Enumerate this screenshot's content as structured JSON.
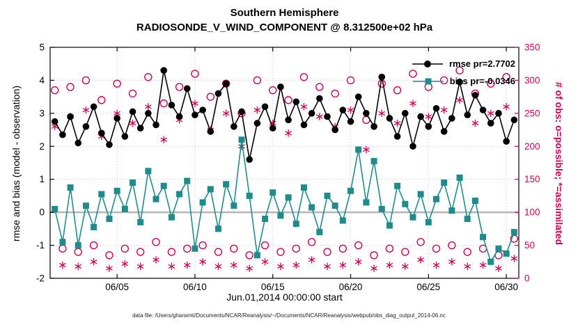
{
  "title": {
    "line1": "Southern Hemisphere",
    "line2": "RADIOSONDE_V_WIND_COMPONENT @ 8.312500e+02 hPa"
  },
  "axes": {
    "left_label": "rmse and bias (model - observation)",
    "right_label": "# of obs: o=possible; *=assimilated",
    "x_label": "Jun.01,2014 00:00:00 start",
    "left_ticks": [
      -2,
      -1,
      0,
      1,
      2,
      3,
      4,
      5
    ],
    "right_ticks": [
      0,
      50,
      100,
      150,
      200,
      250,
      300,
      350
    ],
    "x_ticks": [
      {
        "v": 5,
        "label": "06/05"
      },
      {
        "v": 10,
        "label": "06/10"
      },
      {
        "v": 15,
        "label": "06/15"
      },
      {
        "v": 20,
        "label": "06/20"
      },
      {
        "v": 25,
        "label": "06/25"
      },
      {
        "v": 30,
        "label": "06/30"
      }
    ],
    "left_range": [
      -2,
      5
    ],
    "right_range": [
      0,
      350
    ],
    "x_range": [
      0.7,
      30.8
    ]
  },
  "legend": {
    "rmse_label": "rmse pr=2.7702",
    "bias_label": "bias pr=-0.0346"
  },
  "colors": {
    "rmse": "#000000",
    "bias": "#1f8b8b",
    "obs": "#cc0052",
    "zero_line": "#b5b5b5",
    "grid": "#c9c9c9"
  },
  "caption": "data file: /Users/gharamti/Documents/NCAR/Reanalysis/~/Documents/NCAR/Reanalysis/webpub/obs_diag_output_2014-06.nc",
  "chart_data": {
    "type": "line",
    "title": "Southern Hemisphere RADIOSONDE_V_WIND_COMPONENT @ 8.312500e+02 hPa",
    "xlabel": "Jun.01,2014 00:00:00 start",
    "ylabel_left": "rmse and bias (model - observation)",
    "ylabel_right": "# of obs: o=possible; *=assimilated",
    "ylim_left": [
      -2,
      5
    ],
    "ylim_right": [
      0,
      350
    ],
    "grid": true,
    "legend_position": "top-right",
    "x": [
      1,
      1.5,
      2,
      2.5,
      3,
      3.5,
      4,
      4.5,
      5,
      5.5,
      6,
      6.5,
      7,
      7.5,
      8,
      8.5,
      9,
      9.5,
      10,
      10.5,
      11,
      11.5,
      12,
      12.5,
      13,
      13.5,
      14,
      14.5,
      15,
      15.5,
      16,
      16.5,
      17,
      17.5,
      18,
      18.5,
      19,
      19.5,
      20,
      20.5,
      21,
      21.5,
      22,
      22.5,
      23,
      23.5,
      24,
      24.5,
      25,
      25.5,
      26,
      26.5,
      27,
      27.5,
      28,
      28.5,
      29,
      29.5,
      30,
      30.5
    ],
    "series": [
      {
        "name": "rmse",
        "axis": "left",
        "marker": "filled-circle",
        "line": true,
        "values": [
          2.75,
          2.35,
          2.9,
          2.1,
          2.6,
          3.2,
          2.4,
          2.05,
          2.85,
          2.3,
          3.05,
          2.55,
          3.0,
          2.65,
          4.3,
          3.25,
          2.9,
          3.75,
          2.95,
          3.1,
          2.45,
          3.6,
          3.9,
          2.6,
          3.05,
          1.6,
          2.7,
          3.2,
          2.55,
          3.8,
          2.8,
          3.35,
          2.65,
          3.0,
          3.45,
          2.9,
          2.5,
          3.1,
          2.75,
          3.5,
          3.0,
          2.6,
          4.1,
          2.85,
          2.3,
          3.0,
          2.0,
          2.9,
          2.6,
          3.15,
          2.45,
          2.85,
          3.95,
          2.95,
          3.55,
          3.1,
          2.7,
          3.0,
          2.15,
          2.8
        ]
      },
      {
        "name": "bias",
        "axis": "left",
        "marker": "filled-square",
        "line": true,
        "values": [
          0.1,
          -0.9,
          0.75,
          -1.0,
          0.2,
          -0.45,
          0.55,
          -0.2,
          0.65,
          0.1,
          0.9,
          -0.3,
          1.25,
          0.4,
          0.8,
          -0.15,
          0.55,
          0.95,
          -1.1,
          0.3,
          0.7,
          -0.5,
          0.85,
          0.2,
          2.2,
          0.5,
          -1.3,
          -0.2,
          0.6,
          -0.1,
          0.45,
          -0.35,
          0.75,
          0.15,
          -0.6,
          0.5,
          0.2,
          -0.25,
          0.65,
          1.9,
          0.3,
          1.55,
          0.1,
          -0.4,
          0.8,
          0.25,
          -0.15,
          0.55,
          -0.3,
          0.4,
          0.9,
          0.05,
          1.05,
          -0.2,
          0.35,
          -0.75,
          -1.5,
          -1.1,
          -1.25,
          -0.6
        ]
      },
      {
        "name": "possible",
        "axis": "right",
        "marker": "open-circle",
        "line": false,
        "values": [
          285,
          45,
          290,
          40,
          300,
          50,
          270,
          35,
          295,
          45,
          280,
          40,
          305,
          55,
          265,
          40,
          290,
          45,
          310,
          50,
          275,
          40,
          295,
          45,
          250,
          35,
          300,
          50,
          285,
          40,
          270,
          45,
          305,
          55,
          290,
          40,
          280,
          45,
          300,
          50,
          240,
          35,
          295,
          45,
          285,
          40,
          310,
          55,
          290,
          45,
          300,
          50,
          315,
          40,
          280,
          45,
          295,
          35,
          305,
          60
        ]
      },
      {
        "name": "assimilated",
        "axis": "right",
        "marker": "asterisk",
        "line": false,
        "values": [
          230,
          20,
          245,
          18,
          255,
          25,
          215,
          15,
          250,
          22,
          235,
          18,
          260,
          28,
          210,
          18,
          240,
          20,
          265,
          25,
          225,
          18,
          250,
          20,
          200,
          15,
          255,
          25,
          235,
          18,
          220,
          20,
          260,
          28,
          245,
          18,
          230,
          20,
          255,
          25,
          195,
          15,
          250,
          20,
          235,
          18,
          265,
          28,
          245,
          20,
          255,
          25,
          270,
          18,
          235,
          20,
          250,
          15,
          260,
          30
        ]
      }
    ]
  }
}
